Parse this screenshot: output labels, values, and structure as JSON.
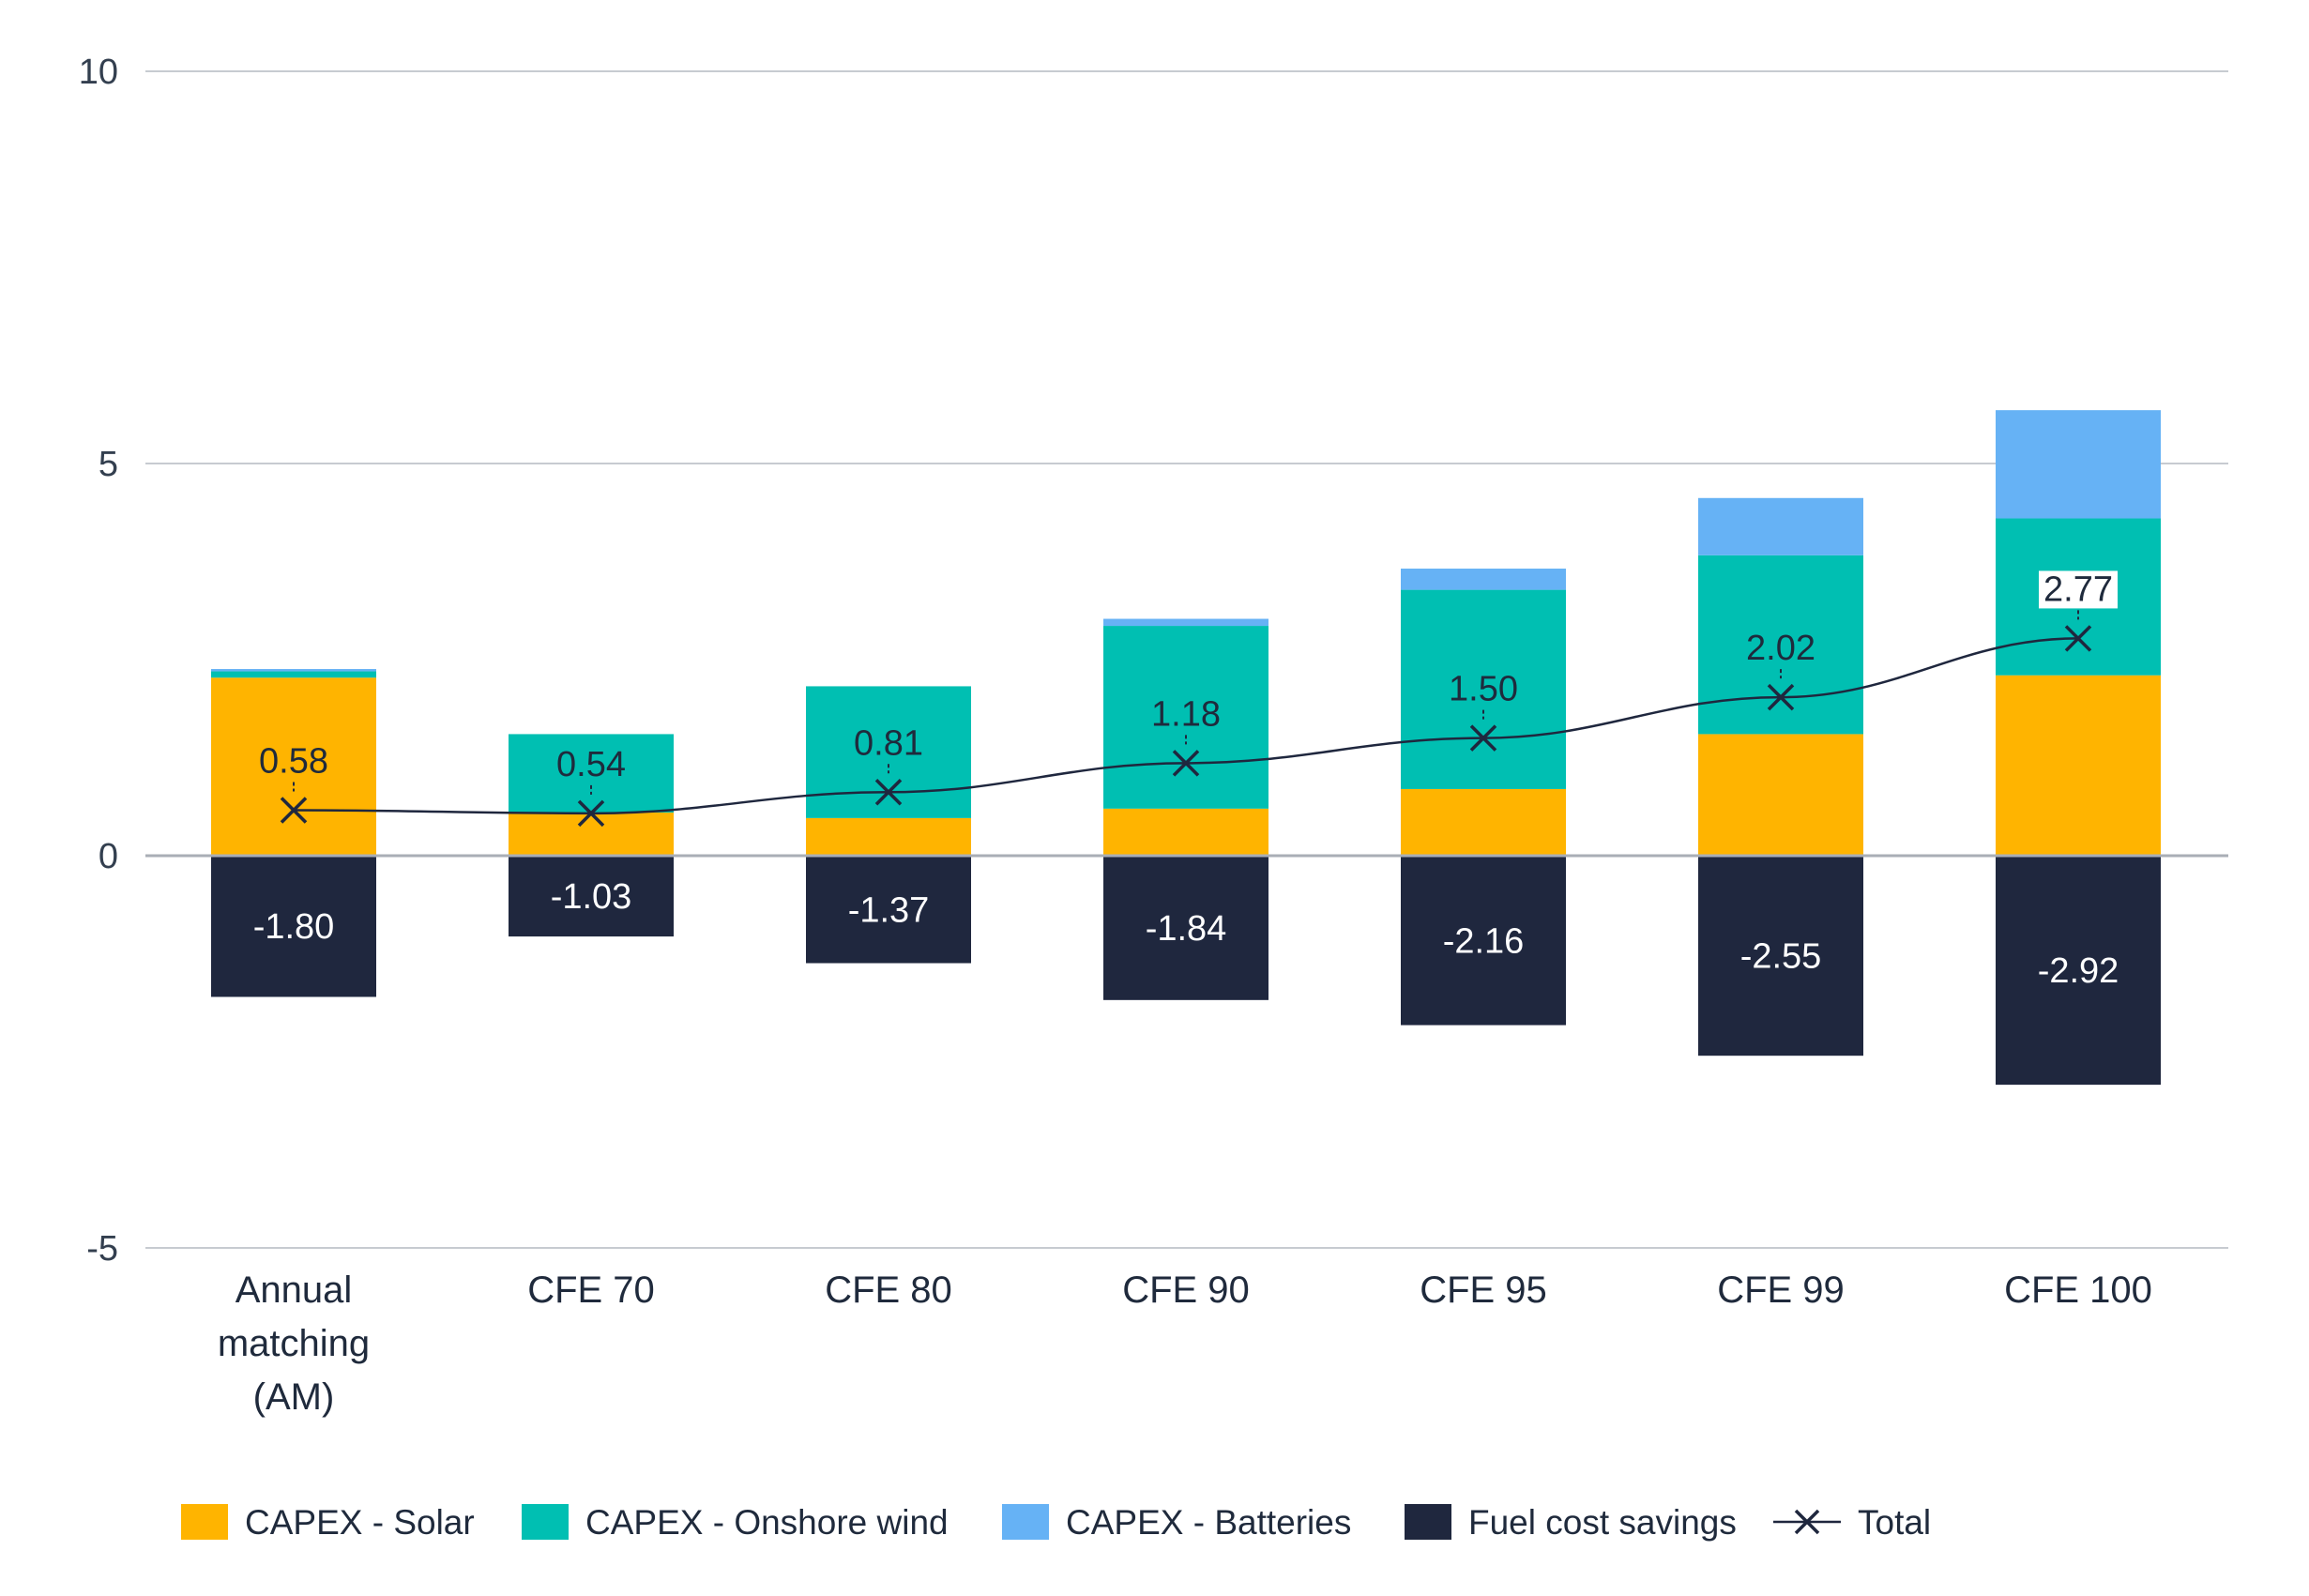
{
  "chart_data": {
    "type": "bar",
    "stacked": true,
    "title": "",
    "xlabel": "",
    "ylabel": "",
    "ylim": [
      -5,
      10
    ],
    "yticks": [
      10,
      5,
      0,
      -5
    ],
    "grid": true,
    "legend_position": "bottom",
    "categories": [
      [
        "Annual",
        "matching",
        "(AM)"
      ],
      [
        "CFE 70"
      ],
      [
        "CFE 80"
      ],
      [
        "CFE 90"
      ],
      [
        "CFE 95"
      ],
      [
        "CFE 99"
      ],
      [
        "CFE 100"
      ]
    ],
    "series": [
      {
        "name": "CAPEX - Solar",
        "color": "#FFB400",
        "values": [
          2.27,
          0.55,
          0.48,
          0.6,
          0.85,
          1.55,
          2.3
        ]
      },
      {
        "name": "CAPEX - Onshore wind",
        "color": "#00BFB2",
        "values": [
          0.08,
          1.0,
          1.68,
          2.33,
          2.54,
          2.28,
          2.0
        ]
      },
      {
        "name": "CAPEX - Batteries",
        "color": "#66B2F5",
        "values": [
          0.03,
          0.0,
          0.0,
          0.09,
          0.27,
          0.73,
          1.38
        ]
      },
      {
        "name": "Fuel cost savings",
        "color": "#1F273E",
        "values": [
          -1.8,
          -1.03,
          -1.37,
          -1.84,
          -2.16,
          -2.55,
          -2.92
        ],
        "labels": [
          "-1.80",
          "-1.03",
          "-1.37",
          "-1.84",
          "-2.16",
          "-2.55",
          "-2.92"
        ]
      }
    ],
    "total": {
      "name": "Total",
      "color": "#1F273E",
      "values": [
        0.58,
        0.54,
        0.81,
        1.18,
        1.5,
        2.02,
        2.77
      ],
      "labels": [
        "0.58",
        "0.54",
        "0.81",
        "1.18",
        "1.50",
        "2.02",
        "2.77"
      ]
    }
  }
}
